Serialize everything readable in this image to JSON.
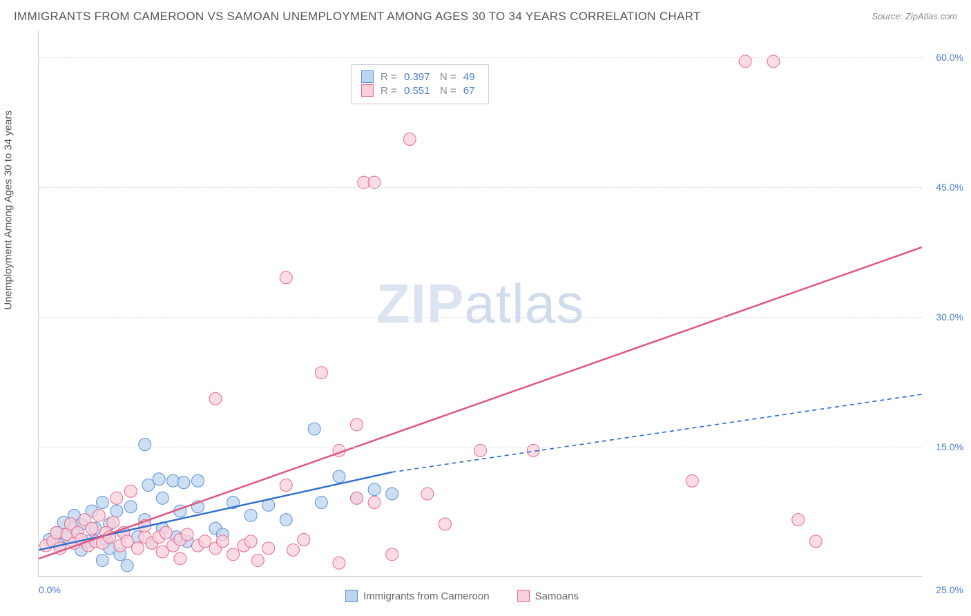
{
  "title": "IMMIGRANTS FROM CAMEROON VS SAMOAN UNEMPLOYMENT AMONG AGES 30 TO 34 YEARS CORRELATION CHART",
  "source": "Source: ZipAtlas.com",
  "y_axis_label": "Unemployment Among Ages 30 to 34 years",
  "watermark_bold": "ZIP",
  "watermark_light": "atlas",
  "chart": {
    "type": "scatter",
    "xlim": [
      0,
      25
    ],
    "ylim": [
      0,
      63
    ],
    "x_ticks": [
      {
        "v": 0,
        "label": "0.0%"
      },
      {
        "v": 25,
        "label": "25.0%"
      }
    ],
    "y_ticks": [
      {
        "v": 15,
        "label": "15.0%"
      },
      {
        "v": 30,
        "label": "30.0%"
      },
      {
        "v": 45,
        "label": "45.0%"
      },
      {
        "v": 60,
        "label": "60.0%"
      }
    ],
    "grid_color": "#e0e0e0",
    "axis_color": "#c8c8c8",
    "label_color": "#4a7fc9",
    "background_color": "#ffffff",
    "series": [
      {
        "name": "Immigrants from Cameroon",
        "marker_fill": "#bcd4ef",
        "marker_stroke": "#5b8fd6",
        "marker_opacity": 0.75,
        "marker_radius": 9,
        "line_color": "#2f6fd0",
        "line_width": 2.5,
        "dash_extrapolate": "6 5",
        "R": "0.397",
        "N": "49",
        "trend": {
          "x1": 0,
          "y1": 3.0,
          "x2_solid": 10.0,
          "y2_solid": 12.0,
          "x2": 25,
          "y2": 21.0
        },
        "points": [
          [
            0.3,
            4.2
          ],
          [
            0.5,
            5.0
          ],
          [
            0.6,
            3.6
          ],
          [
            0.8,
            4.5
          ],
          [
            0.7,
            6.2
          ],
          [
            1.0,
            5.5
          ],
          [
            1.0,
            7.0
          ],
          [
            1.2,
            3.0
          ],
          [
            1.2,
            6.0
          ],
          [
            1.4,
            4.0
          ],
          [
            1.5,
            7.5
          ],
          [
            1.6,
            5.5
          ],
          [
            1.8,
            8.5
          ],
          [
            1.8,
            1.8
          ],
          [
            1.9,
            4.2
          ],
          [
            2.0,
            6.0
          ],
          [
            2.0,
            3.2
          ],
          [
            2.2,
            7.5
          ],
          [
            2.3,
            2.5
          ],
          [
            2.4,
            5.0
          ],
          [
            2.5,
            1.2
          ],
          [
            2.6,
            8.0
          ],
          [
            2.8,
            4.5
          ],
          [
            3.0,
            6.5
          ],
          [
            3.0,
            15.2
          ],
          [
            3.1,
            10.5
          ],
          [
            3.2,
            3.8
          ],
          [
            3.4,
            11.2
          ],
          [
            3.5,
            5.5
          ],
          [
            3.5,
            9.0
          ],
          [
            3.8,
            11.0
          ],
          [
            3.9,
            4.5
          ],
          [
            4.0,
            7.5
          ],
          [
            4.1,
            10.8
          ],
          [
            4.2,
            4.0
          ],
          [
            4.5,
            8.0
          ],
          [
            4.5,
            11.0
          ],
          [
            5.0,
            5.5
          ],
          [
            5.2,
            4.8
          ],
          [
            5.5,
            8.5
          ],
          [
            6.0,
            7.0
          ],
          [
            6.5,
            8.2
          ],
          [
            7.0,
            6.5
          ],
          [
            7.8,
            17.0
          ],
          [
            8.0,
            8.5
          ],
          [
            8.5,
            11.5
          ],
          [
            9.0,
            9.0
          ],
          [
            9.5,
            10.0
          ],
          [
            10.0,
            9.5
          ]
        ]
      },
      {
        "name": "Samoans",
        "marker_fill": "#f8d0dc",
        "marker_stroke": "#e8678c",
        "marker_opacity": 0.75,
        "marker_radius": 9,
        "line_color": "#e05580",
        "line_width": 2.5,
        "dash_extrapolate": null,
        "R": "0.551",
        "N": "67",
        "trend": {
          "x1": 0,
          "y1": 2.0,
          "x2_solid": 25,
          "y2_solid": 38.0,
          "x2": 25,
          "y2": 38.0
        },
        "points": [
          [
            0.2,
            3.5
          ],
          [
            0.4,
            4.0
          ],
          [
            0.5,
            5.0
          ],
          [
            0.6,
            3.2
          ],
          [
            0.8,
            4.8
          ],
          [
            0.9,
            6.0
          ],
          [
            1.0,
            3.8
          ],
          [
            1.1,
            5.0
          ],
          [
            1.2,
            4.2
          ],
          [
            1.3,
            6.5
          ],
          [
            1.4,
            3.5
          ],
          [
            1.5,
            5.5
          ],
          [
            1.6,
            4.0
          ],
          [
            1.7,
            7.0
          ],
          [
            1.8,
            3.8
          ],
          [
            1.9,
            5.0
          ],
          [
            2.0,
            4.5
          ],
          [
            2.1,
            6.2
          ],
          [
            2.2,
            9.0
          ],
          [
            2.3,
            3.5
          ],
          [
            2.4,
            5.0
          ],
          [
            2.5,
            4.0
          ],
          [
            2.6,
            9.8
          ],
          [
            2.8,
            3.2
          ],
          [
            3.0,
            4.5
          ],
          [
            3.0,
            5.8
          ],
          [
            3.2,
            3.8
          ],
          [
            3.4,
            4.5
          ],
          [
            3.5,
            2.8
          ],
          [
            3.6,
            5.0
          ],
          [
            3.8,
            3.5
          ],
          [
            4.0,
            4.2
          ],
          [
            4.0,
            2.0
          ],
          [
            4.2,
            4.8
          ],
          [
            4.5,
            3.5
          ],
          [
            4.7,
            4.0
          ],
          [
            5.0,
            3.2
          ],
          [
            5.0,
            20.5
          ],
          [
            5.2,
            4.0
          ],
          [
            5.5,
            2.5
          ],
          [
            5.8,
            3.5
          ],
          [
            6.0,
            4.0
          ],
          [
            6.2,
            1.8
          ],
          [
            6.5,
            3.2
          ],
          [
            7.0,
            10.5
          ],
          [
            7.0,
            34.5
          ],
          [
            7.2,
            3.0
          ],
          [
            7.5,
            4.2
          ],
          [
            8.0,
            23.5
          ],
          [
            8.5,
            1.5
          ],
          [
            8.5,
            14.5
          ],
          [
            9.0,
            9.0
          ],
          [
            9.0,
            17.5
          ],
          [
            9.2,
            45.5
          ],
          [
            9.5,
            45.5
          ],
          [
            9.5,
            8.5
          ],
          [
            10.0,
            2.5
          ],
          [
            10.5,
            50.5
          ],
          [
            11.0,
            9.5
          ],
          [
            11.5,
            6.0
          ],
          [
            12.5,
            14.5
          ],
          [
            14.0,
            14.5
          ],
          [
            18.5,
            11.0
          ],
          [
            20.0,
            59.5
          ],
          [
            20.8,
            59.5
          ],
          [
            21.5,
            6.5
          ],
          [
            22.0,
            4.0
          ]
        ]
      }
    ]
  },
  "legend_bottom": [
    {
      "label": "Immigrants from Cameroon",
      "fill": "#bcd4ef",
      "stroke": "#5b8fd6"
    },
    {
      "label": "Samoans",
      "fill": "#f8d0dc",
      "stroke": "#e8678c"
    }
  ]
}
